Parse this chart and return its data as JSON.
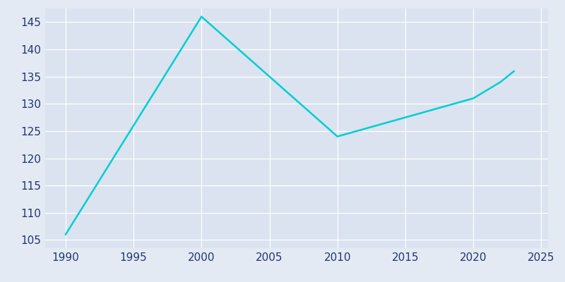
{
  "years": [
    1990,
    2000,
    2010,
    2020,
    2022,
    2023
  ],
  "population": [
    106,
    146,
    124,
    131,
    134,
    136
  ],
  "line_color": "#00CED1",
  "background_color": "#E3EAF4",
  "plot_bg_color": "#DAE3EF",
  "xlim": [
    1988.5,
    2025.5
  ],
  "ylim": [
    103.5,
    147.5
  ],
  "xticks": [
    1990,
    1995,
    2000,
    2005,
    2010,
    2015,
    2020,
    2025
  ],
  "yticks": [
    105,
    110,
    115,
    120,
    125,
    130,
    135,
    140,
    145
  ],
  "tick_color": "#253570",
  "grid_color": "#FFFFFF",
  "line_width": 1.8,
  "tick_labelsize": 11
}
